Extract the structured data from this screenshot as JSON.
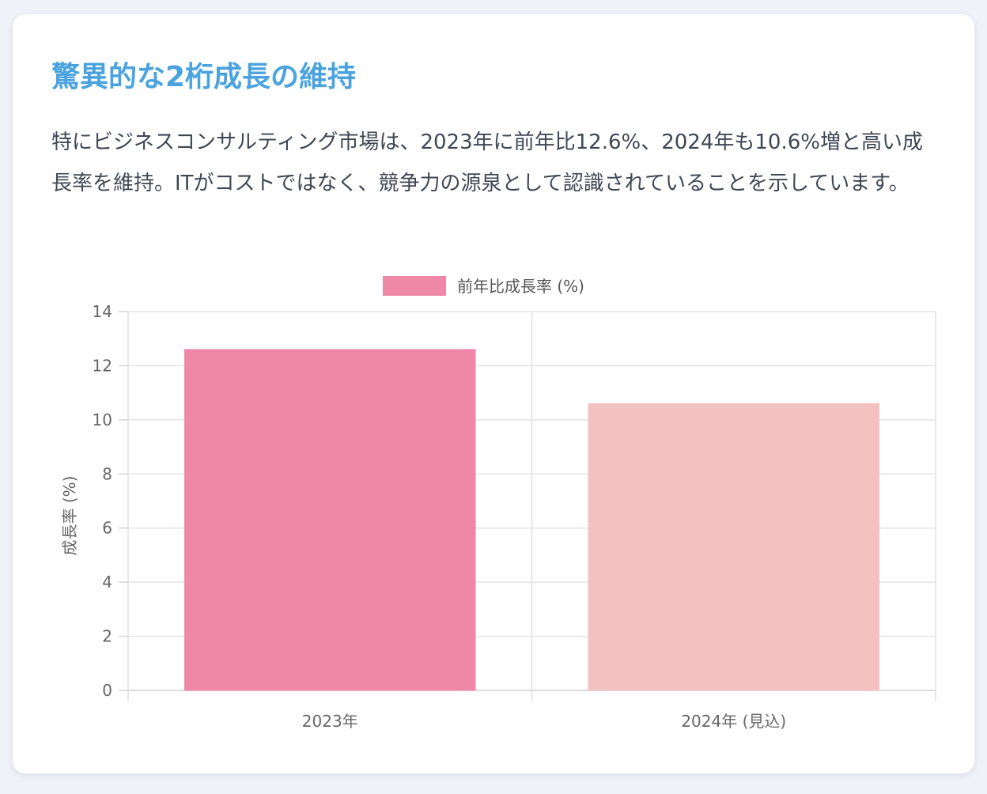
{
  "card": {
    "title": "驚異的な2桁成長の維持",
    "description": "特にビジネスコンサルティング市場は、2023年に前年比12.6%、2024年も10.6%増と高い成長率を維持。ITがコストではなく、競争力の源泉として認識されていることを示しています。"
  },
  "chart_data": {
    "type": "bar",
    "categories": [
      "2023年",
      "2024年 (見込)"
    ],
    "series": [
      {
        "name": "前年比成長率 (%)",
        "values": [
          12.6,
          10.6
        ],
        "colors": [
          "#ef88a8",
          "#f4c1c1"
        ],
        "legend_color": "#ef88a8"
      }
    ],
    "ylabel": "成長率 (%)",
    "xlabel": "",
    "ylim": [
      0,
      14
    ],
    "yticks": [
      0,
      2,
      4,
      6,
      8,
      10,
      12,
      14
    ],
    "grid": true,
    "legend_position": "top"
  }
}
